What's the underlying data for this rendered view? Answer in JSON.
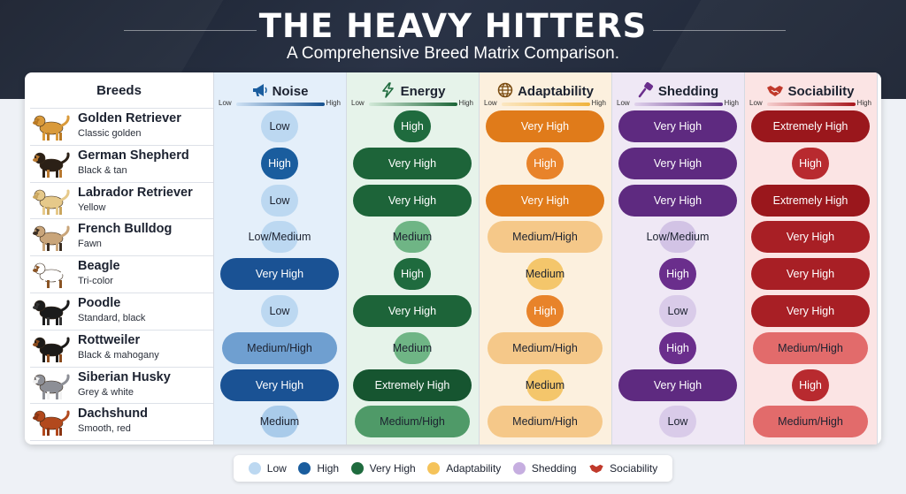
{
  "header": {
    "title": "THE HEAVY HITTERS",
    "subtitle": "A Comprehensive Breed Matrix Comparison."
  },
  "table": {
    "breeds_header": "Breeds",
    "scale_low": "Low",
    "scale_high": "High",
    "metrics": [
      {
        "label": "Noise",
        "icon": "megaphone-icon",
        "accent": "#1a5d9e",
        "tint": "#e4effa",
        "grad_from": "#cfe2f5",
        "grad_to": "#15508e"
      },
      {
        "label": "Energy",
        "icon": "lightning-icon",
        "accent": "#1f6b3e",
        "tint": "#e6f3ea",
        "grad_from": "#d3ead9",
        "grad_to": "#1a6436"
      },
      {
        "label": "Adaptability",
        "icon": "globe-icon",
        "accent": "#e07b1a",
        "tint": "#fcf0de",
        "grad_from": "#fbe7c2",
        "grad_to": "#f0b33c"
      },
      {
        "label": "Shedding",
        "icon": "brush-icon",
        "accent": "#6a2e8c",
        "tint": "#efe8f5",
        "grad_from": "#e0d2ec",
        "grad_to": "#63348a"
      },
      {
        "label": "Sociability",
        "icon": "handshake-icon",
        "accent": "#a01a1f",
        "tint": "#fbe4e4",
        "grad_from": "#f6cfcf",
        "grad_to": "#a8161c"
      }
    ],
    "rows": [
      {
        "name": "Golden Retriever",
        "sub": "Classic golden",
        "dog": "golden-retriever-icon",
        "values": [
          "Low",
          "High",
          "Very High",
          "Very High",
          "Extremely High"
        ]
      },
      {
        "name": "German Shepherd",
        "sub": "Black & tan",
        "dog": "german-shepherd-icon",
        "values": [
          "High",
          "Very High",
          "High",
          "Very High",
          "High"
        ]
      },
      {
        "name": "Labrador Retriever",
        "sub": "Yellow",
        "dog": "labrador-icon",
        "values": [
          "Low",
          "Very High",
          "Very High",
          "Very High",
          "Extremely High"
        ]
      },
      {
        "name": "French Bulldog",
        "sub": "Fawn",
        "dog": "french-bulldog-icon",
        "values": [
          "Low/Medium",
          "Medium",
          "Medium/High",
          "Low/Medium",
          "Very High"
        ]
      },
      {
        "name": "Beagle",
        "sub": "Tri-color",
        "dog": "beagle-icon",
        "values": [
          "Very High",
          "High",
          "Medium",
          "High",
          "Very High"
        ]
      },
      {
        "name": "Poodle",
        "sub": "Standard, black",
        "dog": "poodle-icon",
        "values": [
          "Low",
          "Very High",
          "High",
          "Low",
          "Very High"
        ]
      },
      {
        "name": "Rottweiler",
        "sub": "Black & mahogany",
        "dog": "rottweiler-icon",
        "values": [
          "Medium/High",
          "Medium",
          "Medium/High",
          "High",
          "Medium/High"
        ]
      },
      {
        "name": "Siberian Husky",
        "sub": "Grey & white",
        "dog": "husky-icon",
        "values": [
          "Very High",
          "Extremely High",
          "Medium",
          "Very High",
          "High"
        ]
      },
      {
        "name": "Dachshund",
        "sub": "Smooth, red",
        "dog": "dachshund-icon",
        "values": [
          "Medium",
          "Medium/High",
          "Medium/High",
          "Low",
          "Medium/High"
        ]
      }
    ]
  },
  "legend": [
    {
      "label": "Low",
      "color": "#bcd8f1",
      "kind": "dot"
    },
    {
      "label": "High",
      "color": "#1a5d9e",
      "kind": "dot"
    },
    {
      "label": "Very High",
      "color": "#1f6b3e",
      "kind": "dot"
    },
    {
      "label": "Adaptability",
      "color": "#f5c35a",
      "kind": "dot"
    },
    {
      "label": "Shedding",
      "color": "#c6aee0",
      "kind": "dot"
    },
    {
      "label": "Sociability",
      "color": "#c0392b",
      "kind": "handshake-icon"
    }
  ]
}
